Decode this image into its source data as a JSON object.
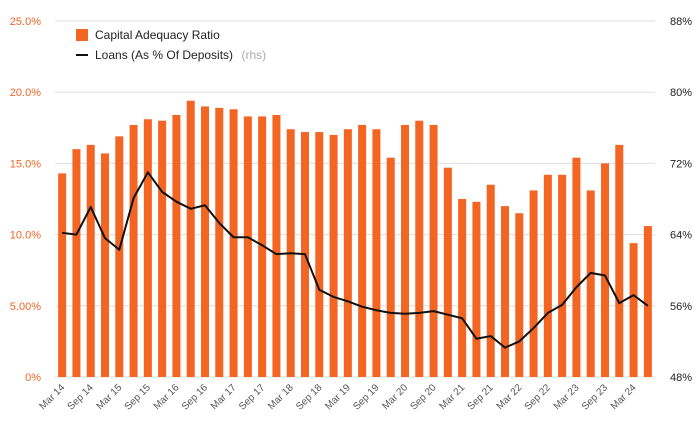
{
  "colors": {
    "bar": "#f26522",
    "line": "#111111",
    "grid": "#dddddd",
    "left_axis_text": "#f26522",
    "right_axis_text": "#222222"
  },
  "chart_data": {
    "type": "bar",
    "grid": true,
    "legend_position": "top-left",
    "categories": [
      "Mar 14",
      "Jun 14",
      "Sep 14",
      "Dec 14",
      "Mar 15",
      "Jun 15",
      "Sep 15",
      "Dec 15",
      "Mar 16",
      "Jun 16",
      "Sep 16",
      "Dec 16",
      "Mar 17",
      "Jun 17",
      "Sep 17",
      "Dec 17",
      "Mar 18",
      "Jun 18",
      "Sep 18",
      "Dec 18",
      "Mar 19",
      "Jun 19",
      "Sep 19",
      "Dec 19",
      "Mar 20",
      "Jun 20",
      "Sep 20",
      "Dec 20",
      "Mar 21",
      "Jun 21",
      "Sep 21",
      "Dec 21",
      "Mar 22",
      "Jun 22",
      "Sep 22",
      "Dec 22",
      "Mar 23",
      "Jun 23",
      "Sep 23",
      "Dec 23",
      "Mar 24",
      "Jun 24"
    ],
    "x_tick_labels": [
      "Mar 14",
      "Sep 14",
      "Mar 15",
      "Sep 15",
      "Mar 16",
      "Sep 16",
      "Mar 17",
      "Sep 17",
      "Mar 18",
      "Sep 18",
      "Mar 19",
      "Sep 19",
      "Mar 20",
      "Sep 20",
      "Mar 21",
      "Sep 21",
      "Mar 22",
      "Sep 22",
      "Mar 23",
      "Sep 23",
      "Mar 24"
    ],
    "y_left": {
      "ylim": [
        0,
        25
      ],
      "ticks": [
        0,
        5,
        10,
        15,
        20,
        25
      ],
      "tick_labels": [
        "0%",
        "5.00%",
        "10.0%",
        "15.0%",
        "20.0%",
        "25.0%"
      ]
    },
    "y_right": {
      "ylim": [
        48,
        88
      ],
      "ticks": [
        48,
        56,
        64,
        72,
        80,
        88
      ],
      "tick_labels": [
        "48%",
        "56%",
        "64%",
        "72%",
        "80%",
        "88%"
      ]
    },
    "series": [
      {
        "name": "Capital Adequacy Ratio",
        "type": "bar",
        "axis": "left",
        "values": [
          14.3,
          16.0,
          16.3,
          15.7,
          16.9,
          17.7,
          18.1,
          18.0,
          18.4,
          19.4,
          19.0,
          18.9,
          18.8,
          18.3,
          18.3,
          18.4,
          17.4,
          17.2,
          17.2,
          17.0,
          17.4,
          17.7,
          17.4,
          15.4,
          17.7,
          18.0,
          17.7,
          14.7,
          12.5,
          12.3,
          13.5,
          12.0,
          11.5,
          13.1,
          14.2,
          14.2,
          15.4,
          13.1,
          15.0,
          16.3,
          9.4,
          10.6
        ]
      },
      {
        "name": "Loans (As % Of Deposits)",
        "note": "(rhs)",
        "type": "line",
        "axis": "right",
        "values": [
          64.2,
          64.0,
          67.1,
          63.6,
          62.3,
          68.1,
          71.0,
          68.8,
          67.7,
          66.9,
          67.3,
          65.3,
          63.7,
          63.7,
          62.8,
          61.8,
          61.9,
          61.8,
          57.8,
          57.0,
          56.5,
          55.9,
          55.5,
          55.2,
          55.1,
          55.2,
          55.4,
          55.0,
          54.6,
          52.3,
          52.6,
          51.3,
          52.0,
          53.5,
          55.2,
          56.1,
          58.1,
          59.7,
          59.4,
          56.3,
          57.2,
          56.0
        ]
      }
    ]
  }
}
